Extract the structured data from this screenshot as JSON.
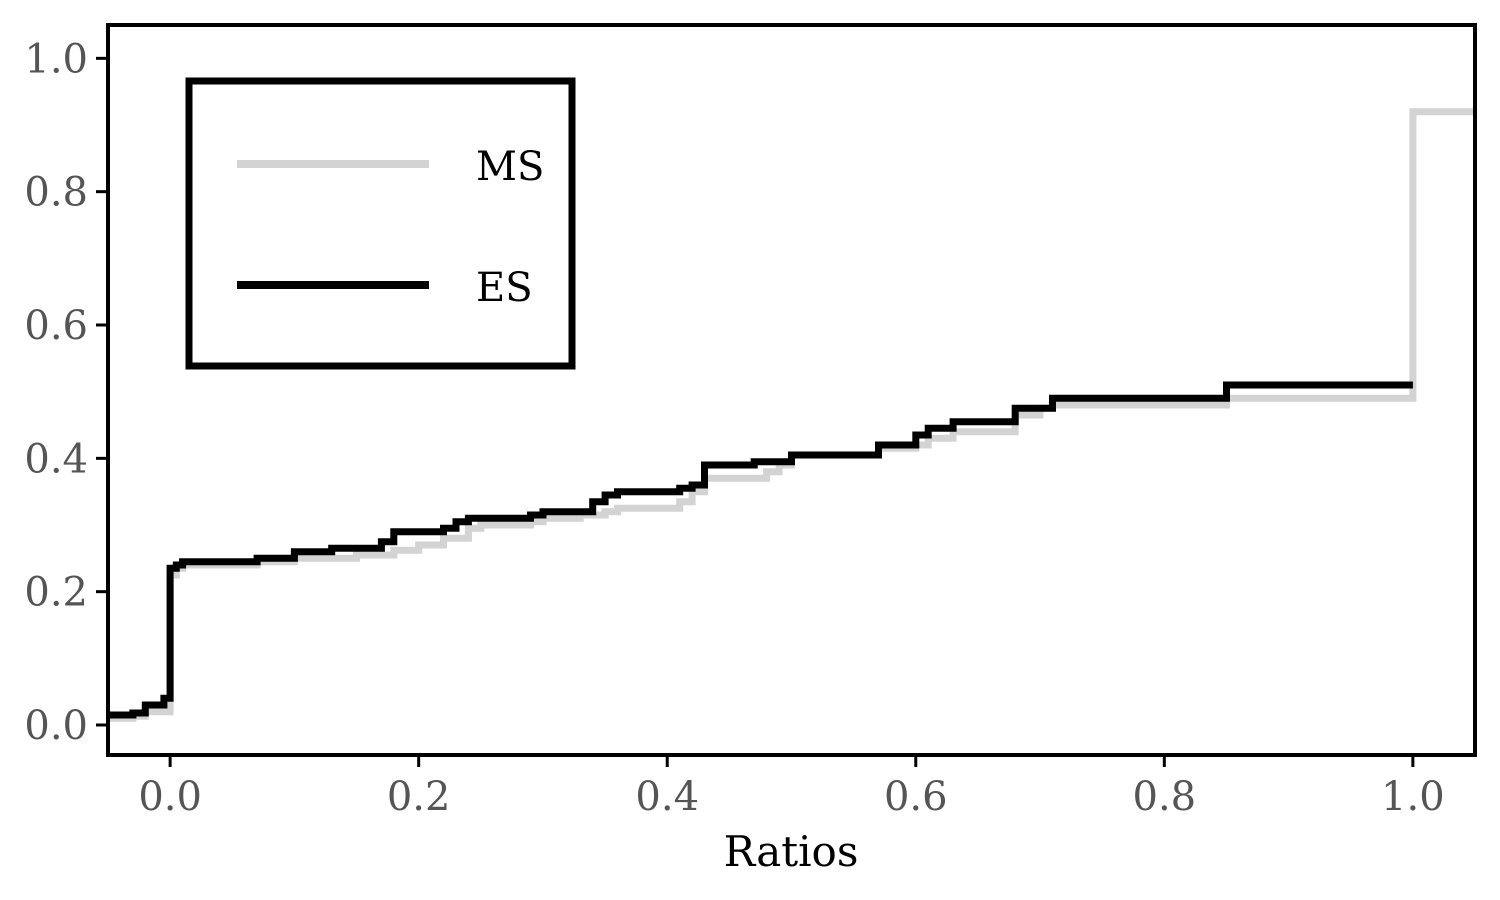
{
  "chart_data": {
    "type": "line",
    "step": true,
    "title": "",
    "xlabel": "Ratios",
    "ylabel": "",
    "xlim": [
      -0.05,
      1.05
    ],
    "ylim": [
      -0.045,
      1.05
    ],
    "xticks": [
      0.0,
      0.2,
      0.4,
      0.6,
      0.8,
      1.0
    ],
    "xtick_labels": [
      "0.0",
      "0.2",
      "0.4",
      "0.6",
      "0.8",
      "1.0"
    ],
    "yticks": [
      0.0,
      0.2,
      0.4,
      0.6,
      0.8,
      1.0
    ],
    "ytick_labels": [
      "0.0",
      "0.2",
      "0.4",
      "0.6",
      "0.8",
      "1.0"
    ],
    "grid": false,
    "legend_position": "top-left",
    "series": [
      {
        "name": "MS",
        "color": "#d3d3d3",
        "x": [
          -0.05,
          -0.03,
          -0.02,
          0.0,
          0.0,
          0.005,
          0.01,
          0.07,
          0.1,
          0.15,
          0.18,
          0.2,
          0.22,
          0.24,
          0.25,
          0.29,
          0.3,
          0.33,
          0.35,
          0.36,
          0.41,
          0.42,
          0.43,
          0.48,
          0.49,
          0.5,
          0.56,
          0.57,
          0.6,
          0.61,
          0.63,
          0.68,
          0.7,
          0.71,
          0.85,
          1.0,
          1.0,
          1.05
        ],
        "y": [
          0.01,
          0.013,
          0.02,
          0.02,
          0.225,
          0.235,
          0.24,
          0.245,
          0.25,
          0.255,
          0.262,
          0.27,
          0.28,
          0.295,
          0.3,
          0.305,
          0.31,
          0.315,
          0.32,
          0.325,
          0.335,
          0.35,
          0.37,
          0.38,
          0.39,
          0.405,
          0.405,
          0.415,
          0.42,
          0.43,
          0.44,
          0.465,
          0.475,
          0.48,
          0.49,
          0.495,
          0.92,
          0.92
        ]
      },
      {
        "name": "ES",
        "color": "#000000",
        "x": [
          -0.05,
          -0.03,
          -0.02,
          -0.005,
          -0.005,
          0.0,
          0.0,
          0.005,
          0.01,
          0.07,
          0.1,
          0.13,
          0.17,
          0.18,
          0.22,
          0.23,
          0.24,
          0.29,
          0.3,
          0.34,
          0.35,
          0.36,
          0.41,
          0.42,
          0.43,
          0.47,
          0.49,
          0.5,
          0.57,
          0.6,
          0.61,
          0.63,
          0.67,
          0.68,
          0.71,
          0.85,
          1.0
        ],
        "y": [
          0.015,
          0.018,
          0.03,
          0.03,
          0.04,
          0.04,
          0.235,
          0.24,
          0.245,
          0.25,
          0.26,
          0.265,
          0.275,
          0.29,
          0.295,
          0.305,
          0.31,
          0.315,
          0.32,
          0.335,
          0.345,
          0.35,
          0.355,
          0.36,
          0.39,
          0.395,
          0.395,
          0.405,
          0.42,
          0.435,
          0.445,
          0.455,
          0.455,
          0.475,
          0.49,
          0.51,
          0.51
        ]
      }
    ]
  }
}
